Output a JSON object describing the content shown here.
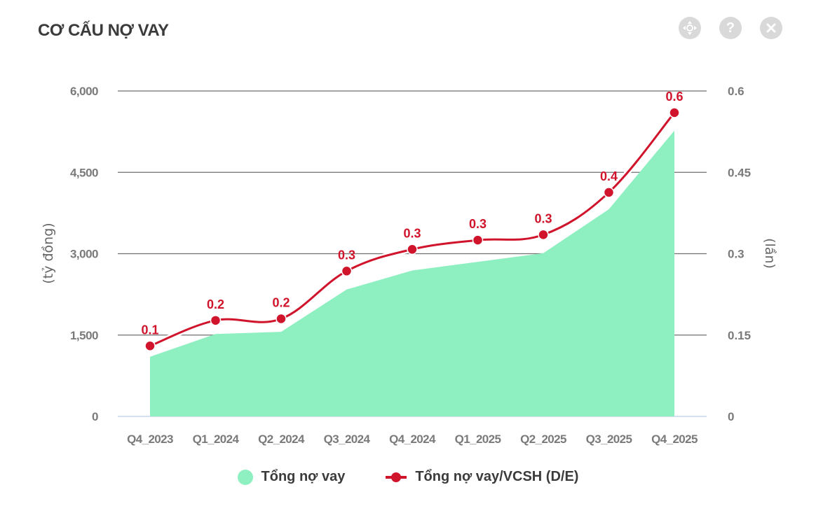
{
  "header": {
    "title": "CƠ CẤU NỢ VAY"
  },
  "toolbar": {
    "icons": [
      "move-icon",
      "help-icon",
      "close-icon"
    ]
  },
  "colors": {
    "area": "#8ef0c0",
    "line": "#d0142c",
    "grid": "#7a7a7a",
    "axis_text": "#7a7a7a"
  },
  "chart_data": {
    "type": "area",
    "categories": [
      "Q4_2023",
      "Q1_2024",
      "Q2_2024",
      "Q3_2024",
      "Q4_2024",
      "Q1_2025",
      "Q2_2025",
      "Q3_2025",
      "Q4_2025"
    ],
    "series": [
      {
        "name": "Tổng nợ vay",
        "type": "area",
        "axis": "left",
        "values": [
          1100,
          1520,
          1560,
          2340,
          2690,
          2850,
          3010,
          3820,
          5270
        ]
      },
      {
        "name": "Tổng nợ vay/VCSH (D/E)",
        "type": "line",
        "axis": "right",
        "values": [
          0.13,
          0.177,
          0.18,
          0.268,
          0.308,
          0.325,
          0.335,
          0.413,
          0.56
        ],
        "labels": [
          "0.1",
          "0.2",
          "0.2",
          "0.3",
          "0.3",
          "0.3",
          "0.3",
          "0.4",
          "0.6"
        ]
      }
    ],
    "ylabel": "(tỷ đồng)",
    "y2label": "(lần)",
    "ylim": [
      0,
      6000
    ],
    "y2lim": [
      0,
      0.6
    ],
    "yticks": [
      "0",
      "1,500",
      "3,000",
      "4,500",
      "6,000"
    ],
    "y2ticks": [
      "0",
      "0.15",
      "0.3",
      "0.45",
      "0.6"
    ],
    "grid": true,
    "legend_position": "bottom"
  }
}
